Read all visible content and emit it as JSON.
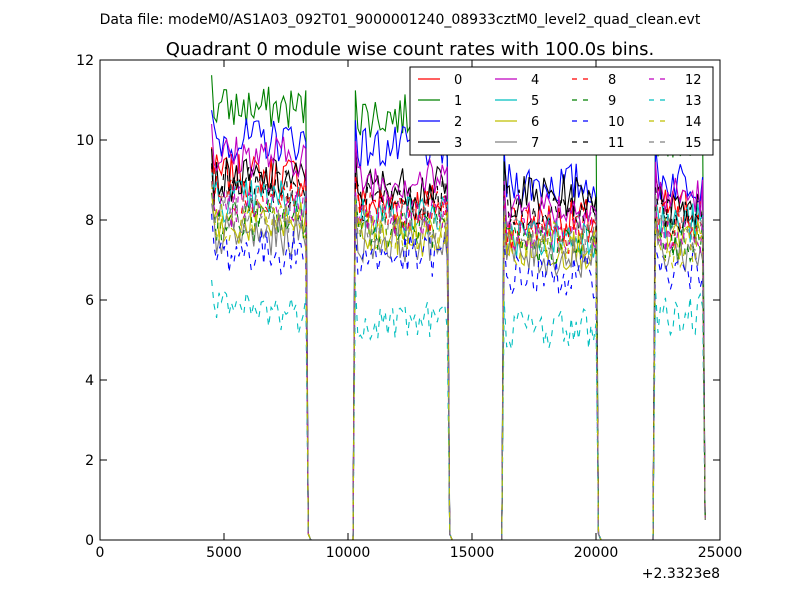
{
  "figure": {
    "suptitle": "Data file: modeM0/AS1A03_092T01_9000001240_08933cztM0_level2_quad_clean.evt",
    "offset_label": "+2.3323e8"
  },
  "chart_data": {
    "type": "line",
    "title": "Quadrant 0 module wise count rates with 100.0s bins.",
    "xlabel": "",
    "ylabel": "",
    "xlim": [
      0,
      25000
    ],
    "ylim": [
      0,
      12
    ],
    "x_offset": 233230000,
    "x_ticks": [
      0,
      5000,
      10000,
      15000,
      20000,
      25000
    ],
    "x_tick_labels": [
      "0",
      "5000",
      "10000",
      "15000",
      "20000",
      "25000"
    ],
    "y_ticks": [
      0,
      2,
      4,
      6,
      8,
      10,
      12
    ],
    "y_tick_labels": [
      "0",
      "2",
      "4",
      "6",
      "8",
      "10",
      "12"
    ],
    "grid": false,
    "legend": {
      "position": "top-right",
      "columns": 4
    },
    "bin_size_s": 100,
    "segments": [
      {
        "start": 4500,
        "end": 8300
      },
      {
        "start": 10300,
        "end": 14000
      },
      {
        "start": 16300,
        "end": 20000
      },
      {
        "start": 22400,
        "end": 24300
      }
    ],
    "series": [
      {
        "name": "0",
        "color": "#ff0000",
        "dash": "solid",
        "levels": [
          9.1,
          8.4,
          8.0,
          8.3
        ]
      },
      {
        "name": "1",
        "color": "#008000",
        "dash": "solid",
        "levels": [
          10.8,
          10.6,
          10.2,
          10.1
        ]
      },
      {
        "name": "2",
        "color": "#0000ff",
        "dash": "solid",
        "levels": [
          10.0,
          9.8,
          8.9,
          9.0
        ]
      },
      {
        "name": "3",
        "color": "#000000",
        "dash": "solid",
        "levels": [
          9.0,
          8.8,
          8.6,
          8.4
        ]
      },
      {
        "name": "4",
        "color": "#bf00bf",
        "dash": "solid",
        "levels": [
          9.6,
          9.0,
          8.3,
          8.6
        ]
      },
      {
        "name": "5",
        "color": "#00bfbf",
        "dash": "solid",
        "levels": [
          8.5,
          8.1,
          7.6,
          7.9
        ]
      },
      {
        "name": "6",
        "color": "#bfbf00",
        "dash": "solid",
        "levels": [
          7.9,
          7.6,
          7.3,
          7.5
        ]
      },
      {
        "name": "7",
        "color": "#808080",
        "dash": "solid",
        "levels": [
          7.6,
          7.5,
          7.1,
          7.2
        ]
      },
      {
        "name": "8",
        "color": "#ff0000",
        "dash": "dashed",
        "levels": [
          8.6,
          8.2,
          7.7,
          7.9
        ]
      },
      {
        "name": "9",
        "color": "#008000",
        "dash": "dashed",
        "levels": [
          8.0,
          7.8,
          7.4,
          7.5
        ]
      },
      {
        "name": "10",
        "color": "#0000ff",
        "dash": "dashed",
        "levels": [
          7.2,
          7.1,
          6.6,
          6.7
        ]
      },
      {
        "name": "11",
        "color": "#000000",
        "dash": "dashed",
        "levels": [
          8.8,
          8.5,
          8.3,
          8.1
        ]
      },
      {
        "name": "12",
        "color": "#bf00bf",
        "dash": "dashed",
        "levels": [
          8.3,
          8.1,
          7.8,
          7.6
        ]
      },
      {
        "name": "13",
        "color": "#00bfbf",
        "dash": "dashed",
        "levels": [
          5.7,
          5.5,
          5.3,
          5.6
        ]
      },
      {
        "name": "14",
        "color": "#bfbf00",
        "dash": "dashed",
        "levels": [
          8.0,
          7.7,
          7.4,
          7.3
        ]
      },
      {
        "name": "15",
        "color": "#808080",
        "dash": "dashed",
        "levels": [
          8.2,
          7.9,
          7.6,
          7.7
        ]
      }
    ]
  }
}
